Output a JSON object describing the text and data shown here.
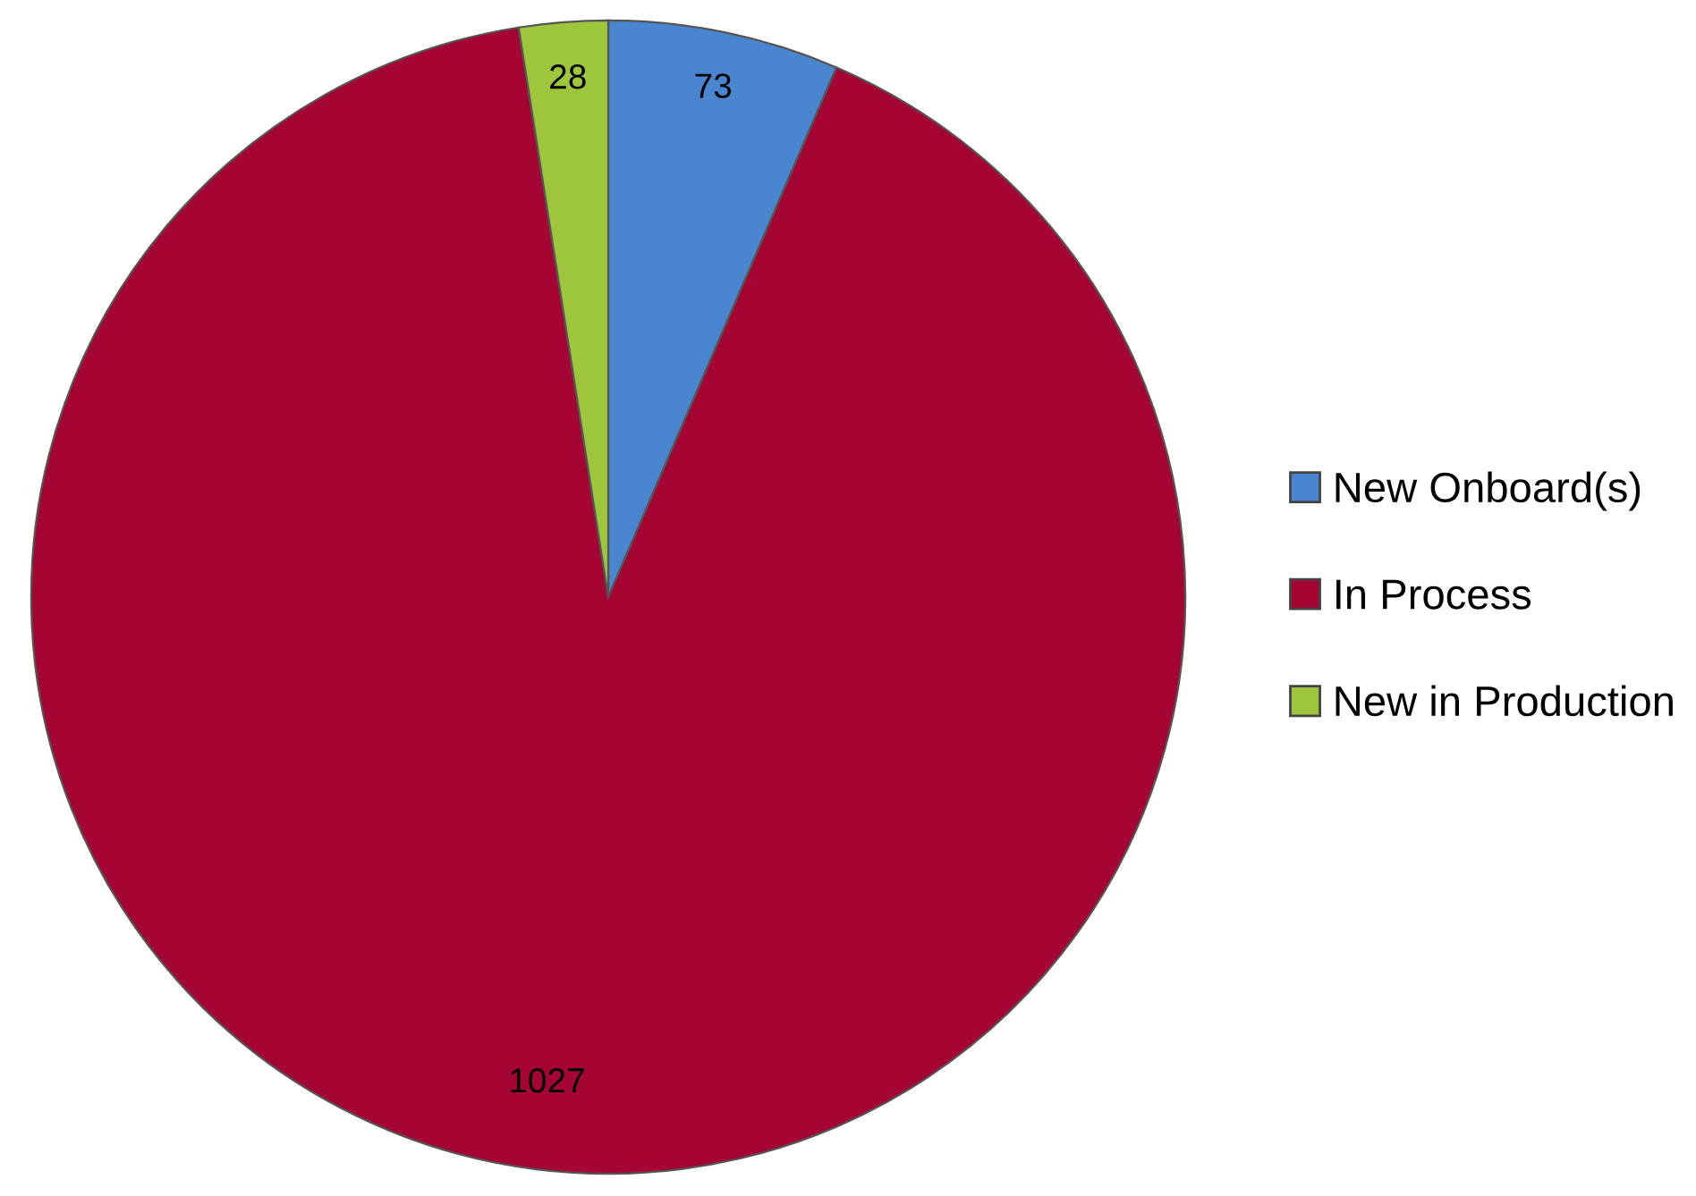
{
  "chart_data": {
    "type": "pie",
    "categories": [
      "New Onboard(s)",
      "In Process",
      "New in Production"
    ],
    "values": [
      73,
      1027,
      28
    ],
    "colors": [
      "#4a86d0",
      "#a50533",
      "#9dc63c"
    ],
    "data_labels": true,
    "legend": "right"
  }
}
